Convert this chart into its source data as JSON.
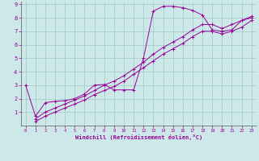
{
  "xlabel": "Windchill (Refroidissement éolien,°C)",
  "bg_color": "#cce8e8",
  "grid_color": "#aacccc",
  "line_color": "#990099",
  "xlim": [
    -0.5,
    23.5
  ],
  "ylim": [
    0,
    9.2
  ],
  "xticks": [
    0,
    1,
    2,
    3,
    4,
    5,
    6,
    7,
    8,
    9,
    10,
    11,
    12,
    13,
    14,
    15,
    16,
    17,
    18,
    19,
    20,
    21,
    22,
    23
  ],
  "yticks": [
    1,
    2,
    3,
    4,
    5,
    6,
    7,
    8,
    9
  ],
  "line1_x": [
    0,
    1,
    2,
    3,
    4,
    5,
    6,
    7,
    8,
    9,
    10,
    11,
    12,
    13,
    14,
    15,
    16,
    17,
    18,
    19,
    20,
    21,
    22,
    23
  ],
  "line1_y": [
    3.0,
    0.7,
    1.7,
    1.8,
    1.85,
    2.0,
    2.35,
    3.0,
    3.05,
    2.65,
    2.65,
    2.65,
    5.0,
    8.5,
    8.85,
    8.85,
    8.75,
    8.55,
    8.2,
    7.1,
    7.0,
    7.1,
    7.8,
    8.0
  ],
  "line2_x": [
    1,
    2,
    3,
    4,
    5,
    6,
    7,
    8,
    9,
    10,
    11,
    12,
    13,
    14,
    15,
    16,
    17,
    18,
    19,
    20,
    21,
    22,
    23
  ],
  "line2_y": [
    0.5,
    1.0,
    1.3,
    1.6,
    1.9,
    2.2,
    2.6,
    3.0,
    3.3,
    3.7,
    4.2,
    4.7,
    5.3,
    5.8,
    6.2,
    6.6,
    7.1,
    7.5,
    7.5,
    7.2,
    7.5,
    7.8,
    8.1
  ],
  "line3_x": [
    1,
    2,
    3,
    4,
    5,
    6,
    7,
    8,
    9,
    10,
    11,
    12,
    13,
    14,
    15,
    16,
    17,
    18,
    19,
    20,
    21,
    22,
    23
  ],
  "line3_y": [
    0.3,
    0.7,
    1.0,
    1.3,
    1.6,
    1.9,
    2.3,
    2.6,
    2.9,
    3.3,
    3.8,
    4.3,
    4.8,
    5.3,
    5.7,
    6.1,
    6.6,
    7.0,
    7.0,
    6.8,
    7.0,
    7.3,
    7.8
  ]
}
